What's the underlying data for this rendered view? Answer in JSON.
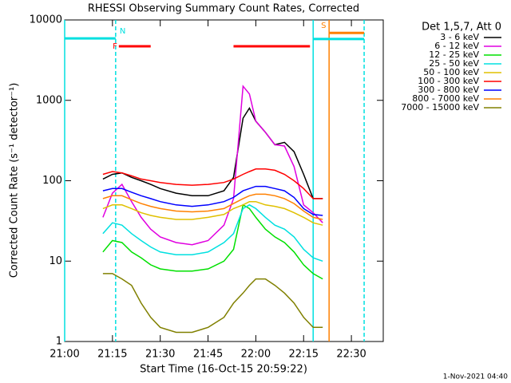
{
  "chart_data": {
    "type": "line",
    "title": "RHESSI Observing Summary Count Rates, Corrected",
    "x_label": "Start Time (16-Oct-15 20:59:22)",
    "y_label": "Corrected Count Rate (s⁻¹ detector⁻¹)",
    "legend_title": "Det 1,5,7, Att 0",
    "timestamp": "1-Nov-2021 04:40",
    "log_y": true,
    "xlim": [
      "21:00",
      "22:40"
    ],
    "xticks": [
      "21:00",
      "21:15",
      "21:30",
      "21:45",
      "22:00",
      "22:15",
      "22:30"
    ],
    "ylim": [
      1,
      10000
    ],
    "yticks": [
      1,
      10,
      100,
      1000,
      10000
    ],
    "x": [
      "21:12",
      "21:15",
      "21:18",
      "21:21",
      "21:24",
      "21:27",
      "21:30",
      "21:35",
      "21:40",
      "21:45",
      "21:50",
      "21:53",
      "21:56",
      "21:58",
      "22:00",
      "22:03",
      "22:06",
      "22:09",
      "22:12",
      "22:15",
      "22:18",
      "22:21"
    ],
    "series": [
      {
        "name": "3 - 6 keV",
        "color": "#000000",
        "values": [
          105,
          120,
          125,
          110,
          100,
          90,
          80,
          70,
          65,
          65,
          75,
          110,
          600,
          800,
          550,
          400,
          280,
          300,
          230,
          120,
          60,
          60
        ]
      },
      {
        "name": "6 - 12 keV",
        "color": "#e000e0",
        "values": [
          35,
          70,
          90,
          55,
          35,
          25,
          20,
          17,
          16,
          18,
          28,
          60,
          1500,
          1200,
          550,
          400,
          280,
          270,
          150,
          50,
          40,
          30
        ]
      },
      {
        "name": "12 - 25 keV",
        "color": "#00e000",
        "values": [
          13,
          18,
          17,
          13,
          11,
          9,
          8,
          7.5,
          7.5,
          8,
          10,
          14,
          50,
          45,
          35,
          25,
          20,
          17,
          13,
          9,
          7,
          6
        ]
      },
      {
        "name": "25 - 50 keV",
        "color": "#00e0e0",
        "values": [
          22,
          30,
          28,
          22,
          18,
          15,
          13,
          12,
          12,
          13,
          17,
          22,
          45,
          50,
          45,
          35,
          28,
          25,
          20,
          14,
          11,
          10
        ]
      },
      {
        "name": "50 - 100 keV",
        "color": "#e0c000",
        "values": [
          45,
          50,
          50,
          45,
          40,
          37,
          35,
          33,
          33,
          35,
          38,
          45,
          50,
          55,
          55,
          50,
          48,
          45,
          40,
          35,
          30,
          28
        ]
      },
      {
        "name": "100 - 300 keV",
        "color": "#ff0000",
        "values": [
          120,
          130,
          125,
          115,
          105,
          100,
          95,
          90,
          88,
          90,
          95,
          105,
          120,
          130,
          140,
          140,
          135,
          120,
          100,
          80,
          60,
          60
        ]
      },
      {
        "name": "300 - 800 keV",
        "color": "#0000ff",
        "values": [
          75,
          80,
          80,
          72,
          65,
          60,
          55,
          50,
          48,
          50,
          55,
          62,
          75,
          80,
          85,
          85,
          80,
          75,
          62,
          45,
          38,
          37
        ]
      },
      {
        "name": "800 - 7000 keV",
        "color": "#ff8000",
        "values": [
          60,
          65,
          65,
          58,
          52,
          48,
          45,
          42,
          41,
          42,
          45,
          52,
          60,
          65,
          68,
          68,
          65,
          60,
          52,
          42,
          35,
          33
        ]
      },
      {
        "name": "7000 - 15000 keV",
        "color": "#808000",
        "values": [
          7,
          7,
          6,
          5,
          3,
          2,
          1.5,
          1.3,
          1.3,
          1.5,
          2,
          3,
          4,
          5,
          6,
          6,
          5,
          4,
          3,
          2,
          1.5,
          1.5
        ]
      }
    ],
    "flags": [
      {
        "label": "N",
        "color": "#00e0e0",
        "start": "21:00",
        "end": "21:16",
        "level": 5900
      },
      {
        "label": "F",
        "color": "#ff0000",
        "start": "21:17",
        "end": "21:27",
        "level": 4700
      },
      {
        "color": "#ff0000",
        "start": "21:53",
        "end": "22:17",
        "level": 4700
      },
      {
        "color": "#00e0e0",
        "start": "22:18",
        "end": "22:34",
        "level": 5800
      },
      {
        "label": "S",
        "color": "#ff8000",
        "start": "22:23",
        "end": "22:34",
        "level": 6900
      }
    ],
    "markers": [
      {
        "x": "21:00",
        "color": "#00e0e0",
        "dashed": false
      },
      {
        "x": "21:16",
        "color": "#00e0e0",
        "dashed": true
      },
      {
        "x": "22:18",
        "color": "#00e0e0",
        "dashed": false
      },
      {
        "x": "22:23",
        "color": "#ff8000",
        "dashed": false
      },
      {
        "x": "22:34",
        "color": "#00e0e0",
        "dashed": true
      }
    ]
  }
}
